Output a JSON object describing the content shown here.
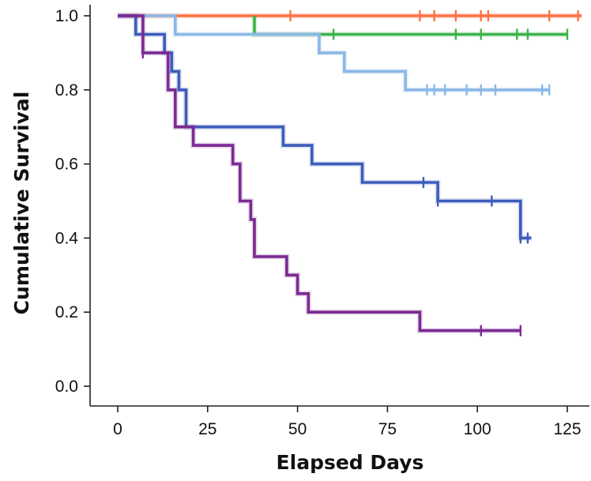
{
  "chart_data": {
    "type": "line",
    "step": true,
    "xlabel": "Elapsed Days",
    "ylabel": "Cumulative Survival",
    "xlim": [
      0,
      131
    ],
    "ylim": [
      0,
      1.03
    ],
    "x_ticks": [
      0,
      25,
      50,
      75,
      100,
      125
    ],
    "y_ticks": [
      0.0,
      0.2,
      0.4,
      0.6,
      0.8,
      1.0
    ],
    "x_tick_labels": [
      "0",
      "25",
      "50",
      "75",
      "100",
      "125"
    ],
    "y_tick_labels": [
      "0.0",
      "0.2",
      "0.4",
      "0.6",
      "0.8",
      "1.0"
    ],
    "grid": false,
    "legend": "none",
    "series": [
      {
        "color": "#ff7043",
        "steps": [
          [
            0,
            1.0
          ],
          [
            129,
            1.0
          ]
        ],
        "censored": [
          48,
          84,
          88,
          94,
          101,
          103,
          120,
          128
        ]
      },
      {
        "color": "#3cb44b",
        "steps": [
          [
            38,
            1.0
          ],
          [
            38,
            0.95
          ],
          [
            125,
            0.95
          ]
        ],
        "censored": [
          60,
          94,
          101,
          111,
          114,
          125
        ]
      },
      {
        "color": "#8bb8e6",
        "steps": [
          [
            0,
            1.0
          ],
          [
            16,
            1.0
          ],
          [
            16,
            0.95
          ],
          [
            56,
            0.95
          ],
          [
            56,
            0.9
          ],
          [
            63,
            0.9
          ],
          [
            63,
            0.85
          ],
          [
            80,
            0.85
          ],
          [
            80,
            0.8
          ],
          [
            120,
            0.8
          ]
        ],
        "censored": [
          86,
          88,
          91,
          97,
          101,
          105,
          118,
          120
        ]
      },
      {
        "color": "#3d5cbc",
        "steps": [
          [
            0,
            1.0
          ],
          [
            5,
            1.0
          ],
          [
            5,
            0.95
          ],
          [
            13,
            0.95
          ],
          [
            13,
            0.9
          ],
          [
            15,
            0.9
          ],
          [
            15,
            0.85
          ],
          [
            17,
            0.85
          ],
          [
            17,
            0.8
          ],
          [
            19,
            0.8
          ],
          [
            19,
            0.7
          ],
          [
            46,
            0.7
          ],
          [
            46,
            0.65
          ],
          [
            54,
            0.65
          ],
          [
            54,
            0.6
          ],
          [
            68,
            0.6
          ],
          [
            68,
            0.55
          ],
          [
            89,
            0.55
          ],
          [
            89,
            0.5
          ],
          [
            112,
            0.5
          ],
          [
            112,
            0.4
          ],
          [
            115,
            0.4
          ]
        ],
        "censored": [
          85,
          89,
          104,
          112,
          114
        ]
      },
      {
        "color": "#7b2a92",
        "steps": [
          [
            0,
            1.0
          ],
          [
            7,
            1.0
          ],
          [
            7,
            0.9
          ],
          [
            14,
            0.9
          ],
          [
            14,
            0.8
          ],
          [
            16,
            0.8
          ],
          [
            16,
            0.7
          ],
          [
            21,
            0.7
          ],
          [
            21,
            0.65
          ],
          [
            32,
            0.65
          ],
          [
            32,
            0.6
          ],
          [
            34,
            0.6
          ],
          [
            34,
            0.5
          ],
          [
            37,
            0.5
          ],
          [
            37,
            0.45
          ],
          [
            38,
            0.45
          ],
          [
            38,
            0.35
          ],
          [
            47,
            0.35
          ],
          [
            47,
            0.3
          ],
          [
            50,
            0.3
          ],
          [
            50,
            0.25
          ],
          [
            53,
            0.25
          ],
          [
            53,
            0.2
          ],
          [
            84,
            0.2
          ],
          [
            84,
            0.15
          ],
          [
            112,
            0.15
          ]
        ],
        "censored": [
          7,
          101,
          112
        ]
      }
    ]
  }
}
